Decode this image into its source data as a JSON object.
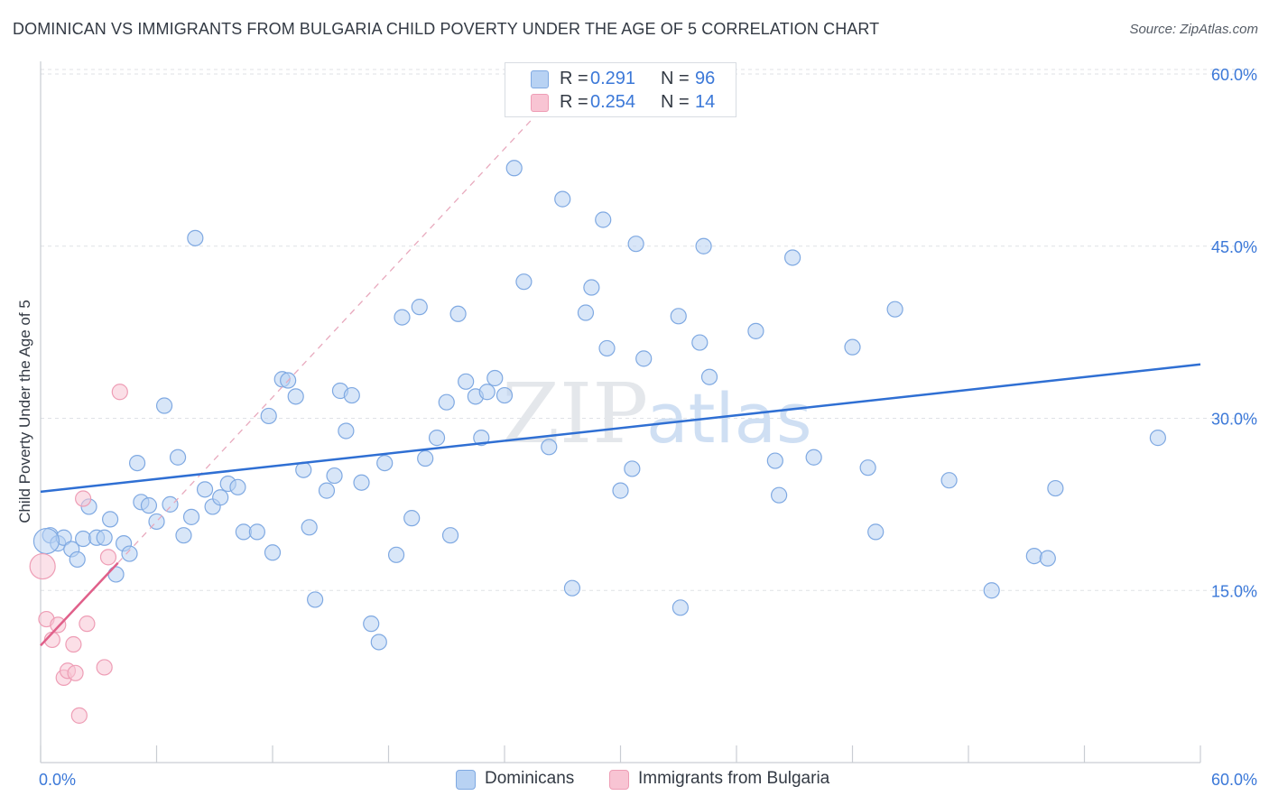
{
  "title": "DOMINICAN VS IMMIGRANTS FROM BULGARIA CHILD POVERTY UNDER THE AGE OF 5 CORRELATION CHART",
  "source": "Source: ZipAtlas.com",
  "watermark": {
    "zip": "ZIP",
    "atlas": "atlas"
  },
  "legend": {
    "r_label": "R =",
    "n_label": "N =",
    "series": [
      {
        "name": "Dominicans",
        "r": "0.291",
        "n": "96",
        "fill": "#b8d2f3",
        "stroke": "#7fa9e2"
      },
      {
        "name": "Immigrants from Bulgaria",
        "r": "0.254",
        "n": "14",
        "fill": "#f8c4d3",
        "stroke": "#ee9db5"
      }
    ]
  },
  "chart_data": {
    "type": "scatter",
    "title": "DOMINICAN VS IMMIGRANTS FROM BULGARIA CHILD POVERTY UNDER THE AGE OF 5 CORRELATION CHART",
    "xlabel": "",
    "ylabel": "Child Poverty Under the Age of 5",
    "xlim": [
      0,
      60
    ],
    "ylim": [
      0,
      62
    ],
    "x_tick_labels": [
      "0.0%",
      "60.0%"
    ],
    "y_ticks": [
      15,
      30,
      45,
      60
    ],
    "y_tick_labels": [
      "15.0%",
      "30.0%",
      "45.0%",
      "60.0%"
    ],
    "grid": true,
    "series": [
      {
        "name": "Dominicans",
        "color": "#7fa9e2",
        "fill": "#b8d2f3",
        "trend_line": {
          "x": [
            0,
            60
          ],
          "y": [
            23.6,
            34.7
          ],
          "color": "#2f6fd3"
        },
        "points": [
          [
            0.5,
            19.8
          ],
          [
            0.9,
            19.1
          ],
          [
            1.2,
            19.6
          ],
          [
            1.6,
            18.6
          ],
          [
            1.9,
            17.7
          ],
          [
            2.2,
            19.5
          ],
          [
            2.5,
            22.3
          ],
          [
            2.9,
            19.6
          ],
          [
            3.3,
            19.6
          ],
          [
            3.6,
            21.2
          ],
          [
            3.9,
            16.4
          ],
          [
            4.3,
            19.1
          ],
          [
            4.6,
            18.2
          ],
          [
            5.0,
            26.1
          ],
          [
            5.2,
            22.7
          ],
          [
            5.6,
            22.4
          ],
          [
            6.0,
            21.0
          ],
          [
            6.4,
            31.1
          ],
          [
            6.7,
            22.5
          ],
          [
            7.1,
            26.6
          ],
          [
            7.4,
            19.8
          ],
          [
            7.8,
            21.4
          ],
          [
            8.0,
            45.7
          ],
          [
            8.5,
            23.8
          ],
          [
            8.9,
            22.3
          ],
          [
            9.3,
            23.1
          ],
          [
            9.7,
            24.3
          ],
          [
            10.2,
            24.0
          ],
          [
            10.5,
            20.1
          ],
          [
            11.2,
            20.1
          ],
          [
            11.8,
            30.2
          ],
          [
            12.0,
            18.3
          ],
          [
            12.5,
            33.4
          ],
          [
            12.8,
            33.3
          ],
          [
            13.2,
            31.9
          ],
          [
            13.6,
            25.5
          ],
          [
            13.9,
            20.5
          ],
          [
            14.2,
            14.2
          ],
          [
            14.8,
            23.7
          ],
          [
            15.2,
            25.0
          ],
          [
            15.5,
            32.4
          ],
          [
            15.8,
            28.9
          ],
          [
            16.1,
            32.0
          ],
          [
            16.6,
            24.4
          ],
          [
            17.1,
            12.1
          ],
          [
            17.5,
            10.5
          ],
          [
            17.8,
            26.1
          ],
          [
            18.4,
            18.1
          ],
          [
            18.7,
            38.8
          ],
          [
            19.2,
            21.3
          ],
          [
            19.6,
            39.7
          ],
          [
            19.9,
            26.5
          ],
          [
            20.5,
            28.3
          ],
          [
            21.0,
            31.4
          ],
          [
            21.2,
            19.8
          ],
          [
            21.6,
            39.1
          ],
          [
            22.0,
            33.2
          ],
          [
            22.5,
            31.9
          ],
          [
            22.8,
            28.3
          ],
          [
            23.1,
            32.3
          ],
          [
            23.5,
            33.5
          ],
          [
            24.0,
            32.0
          ],
          [
            24.5,
            51.8
          ],
          [
            25.0,
            41.9
          ],
          [
            26.3,
            27.5
          ],
          [
            27.0,
            49.1
          ],
          [
            27.5,
            15.2
          ],
          [
            28.2,
            39.2
          ],
          [
            28.5,
            41.4
          ],
          [
            29.1,
            47.3
          ],
          [
            29.3,
            36.1
          ],
          [
            30.0,
            23.7
          ],
          [
            30.8,
            45.2
          ],
          [
            30.6,
            25.6
          ],
          [
            31.2,
            35.2
          ],
          [
            33.0,
            38.9
          ],
          [
            33.1,
            13.5
          ],
          [
            34.1,
            36.6
          ],
          [
            34.3,
            45.0
          ],
          [
            34.6,
            33.6
          ],
          [
            37.0,
            37.6
          ],
          [
            38.0,
            26.3
          ],
          [
            38.2,
            23.3
          ],
          [
            38.9,
            44.0
          ],
          [
            40.0,
            26.6
          ],
          [
            42.0,
            36.2
          ],
          [
            42.8,
            25.7
          ],
          [
            43.2,
            20.1
          ],
          [
            44.2,
            39.5
          ],
          [
            47.0,
            24.6
          ],
          [
            49.2,
            15.0
          ],
          [
            51.4,
            18.0
          ],
          [
            52.1,
            17.8
          ],
          [
            52.5,
            23.9
          ],
          [
            57.8,
            28.3
          ],
          [
            0.3,
            19.3
          ]
        ]
      },
      {
        "name": "Immigrants from Bulgaria",
        "color": "#ee9db5",
        "fill": "#f8c4d3",
        "trend_line": {
          "x": [
            0,
            4
          ],
          "y": [
            10.2,
            17.4
          ],
          "color": "#e0608a"
        },
        "trend_line_extended": {
          "x": [
            4,
            26.5
          ],
          "y": [
            17.4,
            58.0
          ],
          "style": "dashed"
        },
        "points": [
          [
            0.1,
            17.1
          ],
          [
            0.3,
            12.5
          ],
          [
            0.6,
            10.7
          ],
          [
            0.9,
            12.0
          ],
          [
            1.2,
            7.4
          ],
          [
            1.4,
            8.0
          ],
          [
            1.7,
            10.3
          ],
          [
            1.8,
            7.8
          ],
          [
            2.0,
            4.1
          ],
          [
            2.2,
            23.0
          ],
          [
            2.4,
            12.1
          ],
          [
            3.3,
            8.3
          ],
          [
            3.5,
            17.9
          ],
          [
            4.1,
            32.3
          ]
        ]
      }
    ]
  }
}
